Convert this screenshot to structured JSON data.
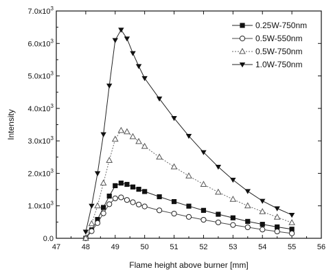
{
  "chart_data": {
    "type": "line",
    "title": "",
    "xlabel": "Flame height above burner [mm]",
    "ylabel": "Intensity",
    "xlim": [
      47,
      56
    ],
    "ylim": [
      0,
      7000
    ],
    "x_ticks": [
      47,
      48,
      49,
      50,
      51,
      52,
      53,
      54,
      55,
      56
    ],
    "x_tick_labels": [
      "47",
      "48",
      "49",
      "50",
      "51",
      "52",
      "53",
      "54",
      "55",
      "56"
    ],
    "y_ticks": [
      0,
      1000,
      2000,
      3000,
      4000,
      5000,
      6000,
      7000
    ],
    "y_tick_labels": [
      {
        "mantissa": "0.0",
        "exp": ""
      },
      {
        "mantissa": "1.0x10",
        "exp": "3"
      },
      {
        "mantissa": "2.0x10",
        "exp": "3"
      },
      {
        "mantissa": "3.0x10",
        "exp": "3"
      },
      {
        "mantissa": "4.0x10",
        "exp": "3"
      },
      {
        "mantissa": "5.0x10",
        "exp": "3"
      },
      {
        "mantissa": "6.0x10",
        "exp": "3"
      },
      {
        "mantissa": "7.0x10",
        "exp": "3"
      }
    ],
    "grid": false,
    "legend_position": "top-right",
    "series": [
      {
        "name": "0.25W-750nm",
        "marker": "square-filled",
        "x": [
          48.0,
          48.2,
          48.4,
          48.6,
          48.8,
          49.0,
          49.2,
          49.4,
          49.6,
          49.8,
          50.0,
          50.5,
          51.0,
          51.5,
          52.0,
          52.5,
          53.0,
          53.5,
          54.0,
          54.5,
          55.0
        ],
        "y": [
          0,
          260,
          580,
          950,
          1300,
          1620,
          1700,
          1660,
          1580,
          1510,
          1440,
          1280,
          1130,
          990,
          860,
          740,
          630,
          520,
          430,
          350,
          280
        ]
      },
      {
        "name": "0.5W-550nm",
        "marker": "circle-open",
        "x": [
          48.0,
          48.2,
          48.4,
          48.6,
          48.8,
          49.0,
          49.2,
          49.4,
          49.6,
          49.8,
          50.0,
          50.5,
          51.0,
          51.5,
          52.0,
          52.5,
          53.0,
          53.5,
          54.0,
          54.5,
          55.0
        ],
        "y": [
          0,
          220,
          470,
          770,
          1050,
          1230,
          1260,
          1180,
          1110,
          1040,
          980,
          860,
          760,
          660,
          570,
          490,
          410,
          340,
          270,
          210,
          150
        ]
      },
      {
        "name": "0.5W-750nm",
        "marker": "triangle-open",
        "x": [
          48.0,
          48.2,
          48.4,
          48.6,
          48.8,
          49.0,
          49.2,
          49.4,
          49.6,
          49.8,
          50.0,
          50.5,
          51.0,
          51.5,
          52.0,
          52.5,
          53.0,
          53.5,
          54.0,
          54.5,
          55.0
        ],
        "y": [
          0,
          450,
          1000,
          1700,
          2400,
          3050,
          3320,
          3280,
          3130,
          2980,
          2830,
          2500,
          2200,
          1920,
          1660,
          1420,
          1200,
          1000,
          820,
          650,
          480
        ]
      },
      {
        "name": "1.0W-750nm",
        "marker": "triangle-down-filled",
        "x": [
          48.0,
          48.2,
          48.4,
          48.6,
          48.8,
          49.0,
          49.2,
          49.4,
          49.6,
          49.8,
          50.0,
          50.5,
          51.0,
          51.5,
          52.0,
          52.5,
          53.0,
          53.5,
          54.0,
          54.5,
          55.0
        ],
        "y": [
          200,
          1000,
          2000,
          3200,
          4700,
          6100,
          6420,
          6150,
          5700,
          5300,
          4930,
          4300,
          3700,
          3150,
          2650,
          2200,
          1800,
          1450,
          1150,
          920,
          720
        ]
      }
    ]
  }
}
